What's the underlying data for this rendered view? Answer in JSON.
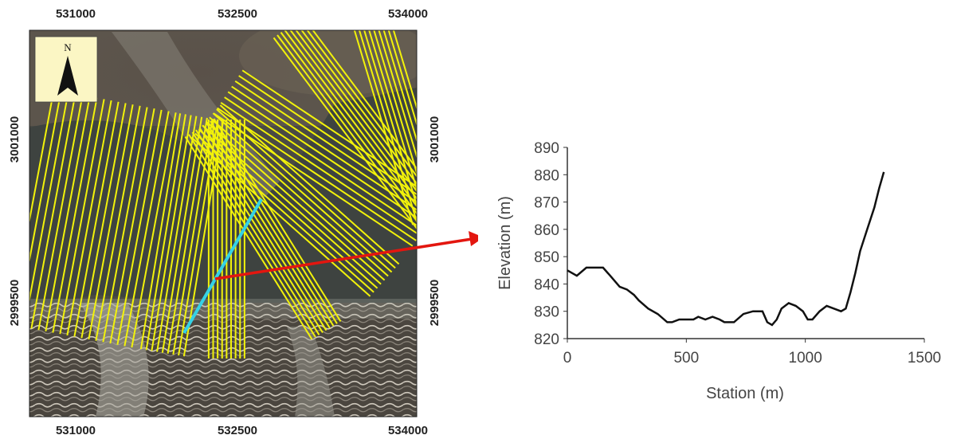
{
  "map": {
    "north_label": "N",
    "x_ticks_top": [
      "531000",
      "532500",
      "534000"
    ],
    "x_ticks_bottom": [
      "531000",
      "532500",
      "534000"
    ],
    "y_ticks_left": [
      "3001000",
      "2999500"
    ],
    "y_ticks_right": [
      "3001000",
      "2999500"
    ],
    "colors": {
      "transect_lines": "#f2f20a",
      "selected_transect": "#35d2e6",
      "arrow": "#e3160f",
      "north_box": "#fbf6c4"
    }
  },
  "chart_data": {
    "type": "line",
    "xlabel": "Station (m)",
    "ylabel": "Elevation (m)",
    "xlim": [
      0,
      1500
    ],
    "ylim": [
      820,
      890
    ],
    "x_ticks": [
      "0",
      "500",
      "1000",
      "1500"
    ],
    "y_ticks": [
      "820",
      "830",
      "840",
      "850",
      "860",
      "870",
      "880",
      "890"
    ],
    "grid": false,
    "series": [
      {
        "color": "#111111",
        "x": [
          0,
          40,
          80,
          100,
          150,
          180,
          220,
          250,
          280,
          300,
          340,
          380,
          420,
          440,
          470,
          500,
          530,
          550,
          580,
          610,
          640,
          660,
          700,
          740,
          780,
          820,
          840,
          860,
          880,
          900,
          930,
          960,
          990,
          1010,
          1030,
          1060,
          1090,
          1120,
          1150,
          1170,
          1190,
          1210,
          1230,
          1260,
          1290,
          1310,
          1330
        ],
        "y": [
          845,
          843,
          846,
          846,
          846,
          843,
          839,
          838,
          836,
          834,
          831,
          829,
          826,
          826,
          827,
          827,
          827,
          828,
          827,
          828,
          827,
          826,
          826,
          829,
          830,
          830,
          826,
          825,
          827,
          831,
          833,
          832,
          830,
          827,
          827,
          830,
          832,
          831,
          830,
          831,
          837,
          844,
          852,
          860,
          868,
          875,
          881
        ]
      }
    ]
  }
}
